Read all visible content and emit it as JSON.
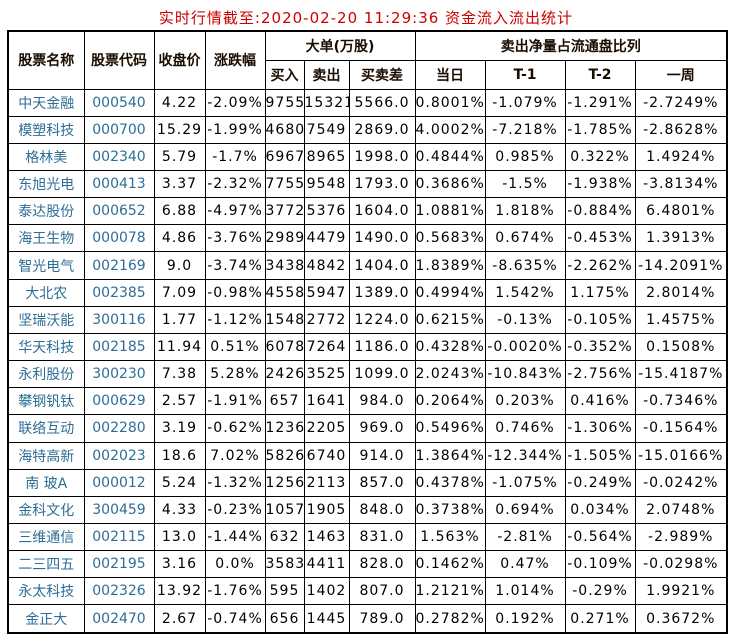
{
  "title": "实时行情截至:2020-02-20 11:29:36 资金流入流出统计",
  "colors": {
    "title_red": "#cc0000",
    "stock_link_blue": "#2e6e96",
    "grid_black": "#000000",
    "background": "#ffffff"
  },
  "table": {
    "headers": {
      "stock_name": "股票名称",
      "stock_code": "股票代码",
      "close_price": "收盘价",
      "change_pct": "涨跌幅",
      "big_order_group": "大单(万股)",
      "buy": "买入",
      "sell": "卖出",
      "buy_sell_diff": "买卖差",
      "net_sell_group": "卖出净量占流通盘比列",
      "today": "当日",
      "t1": "T-1",
      "t2": "T-2",
      "week": "一周"
    },
    "rows": [
      [
        "中天金融",
        "000540",
        "4.22",
        "-2.09%",
        "9755",
        "15321",
        "5566.0",
        "0.8001%",
        "-1.079%",
        "-1.291%",
        "-2.7249%"
      ],
      [
        "模塑科技",
        "000700",
        "15.29",
        "-1.99%",
        "4680",
        "7549",
        "2869.0",
        "4.0002%",
        "-7.218%",
        "-1.785%",
        "-2.8628%"
      ],
      [
        "格林美",
        "002340",
        "5.79",
        "-1.7%",
        "6967",
        "8965",
        "1998.0",
        "0.4844%",
        "0.985%",
        "0.322%",
        "1.4924%"
      ],
      [
        "东旭光电",
        "000413",
        "3.37",
        "-2.32%",
        "7755",
        "9548",
        "1793.0",
        "0.3686%",
        "-1.5%",
        "-1.938%",
        "-3.8134%"
      ],
      [
        "泰达股份",
        "000652",
        "6.88",
        "-4.97%",
        "3772",
        "5376",
        "1604.0",
        "1.0881%",
        "1.818%",
        "-0.884%",
        "6.4801%"
      ],
      [
        "海王生物",
        "000078",
        "4.86",
        "-3.76%",
        "2989",
        "4479",
        "1490.0",
        "0.5683%",
        "0.674%",
        "-0.453%",
        "1.3913%"
      ],
      [
        "智光电气",
        "002169",
        "9.0",
        "-3.74%",
        "3438",
        "4842",
        "1404.0",
        "1.8389%",
        "-8.635%",
        "-2.262%",
        "-14.2091%"
      ],
      [
        "大北农",
        "002385",
        "7.09",
        "-0.98%",
        "4558",
        "5947",
        "1389.0",
        "0.4994%",
        "1.542%",
        "1.175%",
        "2.8014%"
      ],
      [
        "坚瑞沃能",
        "300116",
        "1.77",
        "-1.12%",
        "1548",
        "2772",
        "1224.0",
        "0.6215%",
        "-0.13%",
        "-0.105%",
        "1.4575%"
      ],
      [
        "华天科技",
        "002185",
        "11.94",
        "0.51%",
        "6078",
        "7264",
        "1186.0",
        "0.4328%",
        "-0.0020%",
        "-0.352%",
        "0.1508%"
      ],
      [
        "永利股份",
        "300230",
        "7.38",
        "5.28%",
        "2426",
        "3525",
        "1099.0",
        "2.0243%",
        "-10.843%",
        "-2.756%",
        "-15.4187%"
      ],
      [
        "攀钢钒钛",
        "000629",
        "2.57",
        "-1.91%",
        "657",
        "1641",
        "984.0",
        "0.2064%",
        "0.203%",
        "0.416%",
        "-0.7346%"
      ],
      [
        "联络互动",
        "002280",
        "3.19",
        "-0.62%",
        "1236",
        "2205",
        "969.0",
        "0.5496%",
        "0.746%",
        "-1.306%",
        "-0.1564%"
      ],
      [
        "海特高新",
        "002023",
        "18.6",
        "7.02%",
        "5826",
        "6740",
        "914.0",
        "1.3864%",
        "-12.344%",
        "-1.505%",
        "-15.0166%"
      ],
      [
        "南 玻A",
        "000012",
        "5.24",
        "-1.32%",
        "1256",
        "2113",
        "857.0",
        "0.4378%",
        "-1.075%",
        "-0.249%",
        "-0.0242%"
      ],
      [
        "金科文化",
        "300459",
        "4.33",
        "-0.23%",
        "1057",
        "1905",
        "848.0",
        "0.3738%",
        "0.694%",
        "0.034%",
        "2.0748%"
      ],
      [
        "三维通信",
        "002115",
        "13.0",
        "-1.44%",
        "632",
        "1463",
        "831.0",
        "1.563%",
        "-2.81%",
        "-0.564%",
        "-2.989%"
      ],
      [
        "二三四五",
        "002195",
        "3.16",
        "0.0%",
        "3583",
        "4411",
        "828.0",
        "0.1462%",
        "0.47%",
        "-0.109%",
        "-0.0298%"
      ],
      [
        "永太科技",
        "002326",
        "13.92",
        "-1.76%",
        "595",
        "1402",
        "807.0",
        "1.2121%",
        "1.014%",
        "-0.29%",
        "1.9921%"
      ],
      [
        "金正大",
        "002470",
        "2.67",
        "-0.74%",
        "656",
        "1445",
        "789.0",
        "0.2782%",
        "0.192%",
        "0.271%",
        "0.3672%"
      ]
    ]
  }
}
